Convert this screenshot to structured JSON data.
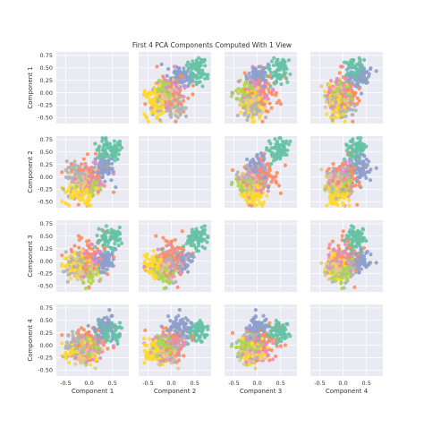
{
  "chart_data": {
    "type": "scatter",
    "title": "First 4 PCA Components Computed With 1 View",
    "components": [
      "Component 1",
      "Component 2",
      "Component 3",
      "Component 4"
    ],
    "xlim": [
      -0.7,
      0.85
    ],
    "ylim": [
      -0.62,
      0.82
    ],
    "ticks": [
      -0.5,
      0.0,
      0.5
    ],
    "tick_labels": [
      "-0.5",
      "0.0",
      "0.5"
    ],
    "yticks": [
      -0.5,
      -0.25,
      0.0,
      0.25,
      0.5,
      0.75
    ],
    "ytick_labels": [
      "-0.50",
      "-0.25",
      "0.00",
      "0.25",
      "0.50",
      "0.75"
    ],
    "grid": true,
    "background": "#eaeaf2",
    "diagonal_empty": true,
    "clusters": [
      {
        "color": "#66c2a5",
        "c1": 0.45,
        "c2": 0.55,
        "c3": 0.45,
        "c4": 0.25,
        "s1": 0.14,
        "s2": 0.11,
        "s3": 0.12,
        "s4": 0.12
      },
      {
        "color": "#fc8d62",
        "c1": -0.02,
        "c2": 0.05,
        "c3": 0.1,
        "c4": 0.05,
        "s1": 0.2,
        "s2": 0.18,
        "s3": 0.18,
        "s4": 0.17
      },
      {
        "color": "#8da0cb",
        "c1": 0.3,
        "c2": 0.15,
        "c3": 0.02,
        "c4": 0.35,
        "s1": 0.12,
        "s2": 0.14,
        "s3": 0.12,
        "s4": 0.11
      },
      {
        "color": "#e78ac3",
        "c1": 0.05,
        "c2": -0.05,
        "c3": 0.0,
        "c4": -0.05,
        "s1": 0.15,
        "s2": 0.14,
        "s3": 0.14,
        "s4": 0.14
      },
      {
        "color": "#a6d854",
        "c1": 0.0,
        "c2": -0.15,
        "c3": -0.2,
        "c4": -0.05,
        "s1": 0.13,
        "s2": 0.12,
        "s3": 0.12,
        "s4": 0.12
      },
      {
        "color": "#ffd92f",
        "c1": -0.2,
        "c2": -0.35,
        "c3": -0.1,
        "c4": -0.1,
        "s1": 0.16,
        "s2": 0.12,
        "s3": 0.13,
        "s4": 0.13
      },
      {
        "color": "#e5c494",
        "c1": -0.1,
        "c2": -0.1,
        "c3": -0.1,
        "c4": -0.15,
        "s1": 0.14,
        "s2": 0.12,
        "s3": 0.12,
        "s4": 0.12
      },
      {
        "color": "#b3b3b3",
        "c1": -0.25,
        "c2": 0.0,
        "c3": -0.05,
        "c4": 0.0,
        "s1": 0.14,
        "s2": 0.14,
        "s3": 0.13,
        "s4": 0.13
      }
    ],
    "points_per_cluster": 70
  }
}
